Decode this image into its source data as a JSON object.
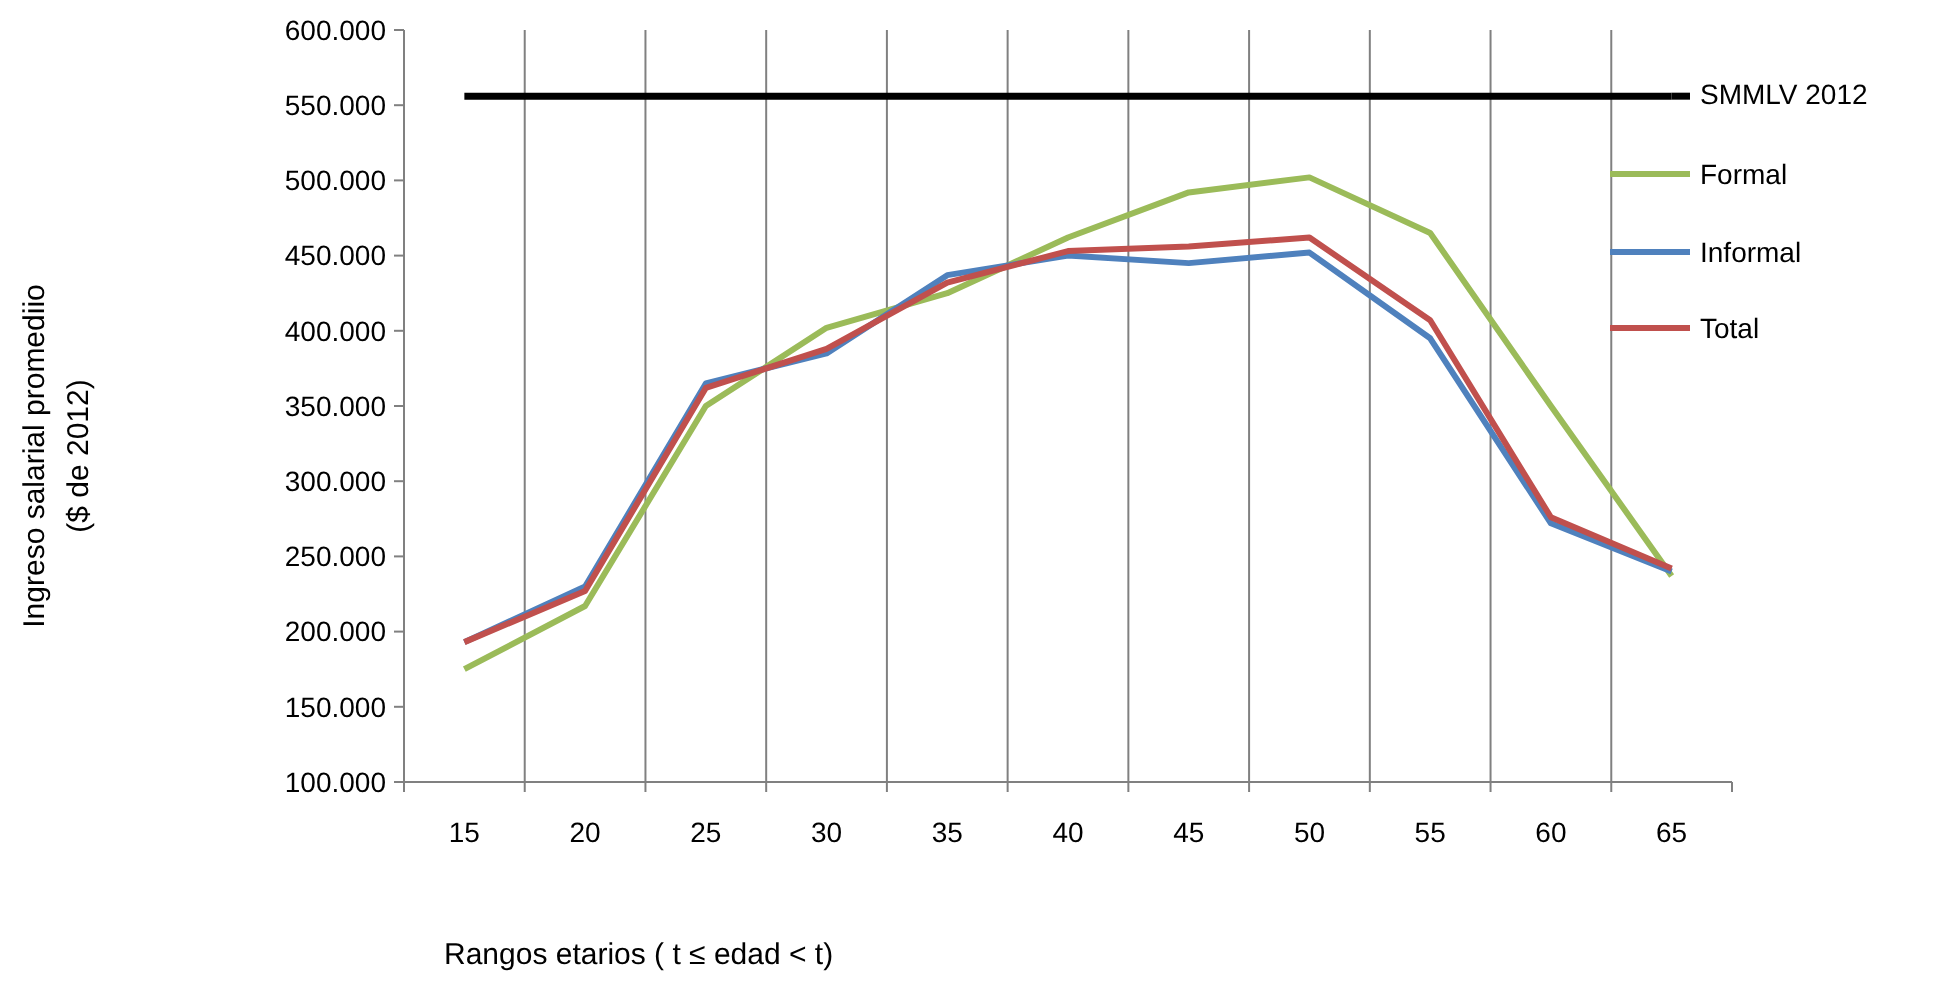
{
  "chart_data": {
    "type": "line",
    "xlabel": "Rangos  etarios ( t ≤ edad < t)",
    "ylabel": [
      "Ingreso salarial  promediio",
      "($ de 2012)"
    ],
    "categories": [
      "15",
      "20",
      "25",
      "30",
      "35",
      "40",
      "45",
      "50",
      "55",
      "60",
      "65"
    ],
    "ylim": [
      100000,
      600000
    ],
    "yticks": [
      {
        "value": 100000,
        "label": "100.000"
      },
      {
        "value": 150000,
        "label": "150.000"
      },
      {
        "value": 200000,
        "label": "200.000"
      },
      {
        "value": 250000,
        "label": "250.000"
      },
      {
        "value": 300000,
        "label": "300.000"
      },
      {
        "value": 350000,
        "label": "350.000"
      },
      {
        "value": 400000,
        "label": "400.000"
      },
      {
        "value": 450000,
        "label": "450.000"
      },
      {
        "value": 500000,
        "label": "500.000"
      },
      {
        "value": 550000,
        "label": "550.000"
      },
      {
        "value": 600000,
        "label": "600.000"
      }
    ],
    "grid": "x",
    "legend": "right",
    "marker": "none",
    "line_style": "solid",
    "series": [
      {
        "name": "SMMLV 2012",
        "color": "#000000",
        "values": [
          556000,
          556000,
          556000,
          556000,
          556000,
          556000,
          556000,
          556000,
          556000,
          556000,
          556000
        ]
      },
      {
        "name": "Formal",
        "color": "#9bbb59",
        "values": [
          175000,
          217000,
          350000,
          402000,
          425000,
          462000,
          492000,
          502000,
          465000,
          350000,
          237000
        ]
      },
      {
        "name": "Informal",
        "color": "#4f81bd",
        "values": [
          193000,
          230000,
          365000,
          385000,
          437000,
          450000,
          445000,
          452000,
          395000,
          272000,
          240000
        ]
      },
      {
        "name": "Total",
        "color": "#c0504d",
        "values": [
          193000,
          227000,
          362000,
          388000,
          432000,
          453000,
          456000,
          462000,
          407000,
          276000,
          242000
        ]
      }
    ]
  }
}
